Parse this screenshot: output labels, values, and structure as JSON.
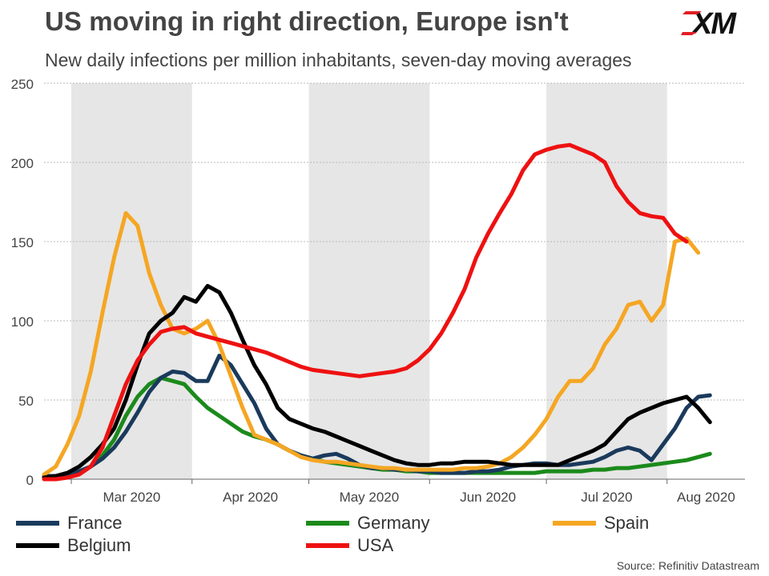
{
  "header": {
    "title": "US moving in right direction, Europe isn't",
    "subtitle": "New daily infections per million inhabitants, seven-day moving averages",
    "logo_text": "XM"
  },
  "source": "Source: Refinitiv Datastream",
  "colors": {
    "France": "#1a3a5c",
    "Germany": "#1b8a1b",
    "Spain": "#f5a623",
    "Belgium": "#000000",
    "USA": "#ee1111",
    "shade": "#e6e6e6",
    "grid": "#b8b8b8",
    "logo": "#e31e24"
  },
  "chart_data": {
    "type": "line",
    "title": "US moving in right direction, Europe isn't",
    "subtitle": "New daily infections per million inhabitants, seven-day moving averages",
    "xlabel": "",
    "ylabel": "",
    "ylim": [
      0,
      250
    ],
    "yticks": [
      0,
      50,
      100,
      150,
      200,
      250
    ],
    "x_start": "2020-02-23",
    "x_end": "2020-08-21",
    "x_step_days": 3,
    "xticks": [
      "Mar 2020",
      "Apr 2020",
      "May 2020",
      "Jun 2020",
      "Jul 2020",
      "Aug 2020"
    ],
    "shaded_months": [
      "Mar 2020",
      "May 2020",
      "Jul 2020"
    ],
    "grid": true,
    "legend_position": "bottom",
    "series": [
      {
        "name": "France",
        "values": [
          2,
          2,
          3,
          5,
          8,
          13,
          20,
          30,
          42,
          55,
          64,
          68,
          67,
          62,
          62,
          78,
          72,
          60,
          48,
          32,
          22,
          18,
          15,
          13,
          15,
          16,
          13,
          9,
          7,
          7,
          6,
          6,
          5,
          5,
          4,
          4,
          4,
          5,
          5,
          6,
          8,
          9,
          10,
          10,
          9,
          9,
          10,
          11,
          14,
          18,
          20,
          18,
          12,
          22,
          32,
          45,
          52,
          53
        ]
      },
      {
        "name": "Germany",
        "values": [
          1,
          1,
          2,
          4,
          8,
          15,
          25,
          40,
          52,
          60,
          64,
          62,
          60,
          52,
          45,
          40,
          35,
          30,
          27,
          25,
          22,
          18,
          15,
          13,
          11,
          10,
          9,
          8,
          7,
          6,
          6,
          5,
          5,
          4,
          4,
          4,
          4,
          4,
          4,
          4,
          4,
          4,
          4,
          5,
          5,
          5,
          5,
          6,
          6,
          7,
          7,
          8,
          9,
          10,
          11,
          12,
          14,
          16
        ]
      },
      {
        "name": "Spain",
        "values": [
          3,
          8,
          22,
          40,
          68,
          105,
          140,
          168,
          160,
          130,
          110,
          95,
          92,
          95,
          100,
          85,
          65,
          45,
          28,
          25,
          22,
          18,
          14,
          12,
          11,
          11,
          10,
          9,
          8,
          7,
          7,
          6,
          6,
          6,
          6,
          6,
          7,
          7,
          8,
          10,
          14,
          20,
          28,
          38,
          52,
          62,
          62,
          70,
          85,
          95,
          110,
          112,
          100,
          110,
          150,
          152,
          143
        ]
      },
      {
        "name": "Belgium",
        "values": [
          1,
          2,
          4,
          8,
          14,
          22,
          32,
          50,
          72,
          92,
          100,
          105,
          115,
          112,
          122,
          118,
          105,
          88,
          72,
          60,
          45,
          38,
          35,
          32,
          30,
          27,
          24,
          21,
          18,
          15,
          12,
          10,
          9,
          9,
          10,
          10,
          11,
          11,
          11,
          10,
          9,
          9,
          9,
          9,
          9,
          12,
          15,
          18,
          22,
          30,
          38,
          42,
          45,
          48,
          50,
          52,
          45,
          36
        ]
      },
      {
        "name": "USA",
        "values": [
          0,
          0,
          1,
          3,
          8,
          20,
          40,
          60,
          75,
          85,
          93,
          95,
          96,
          92,
          90,
          88,
          86,
          84,
          82,
          80,
          77,
          74,
          71,
          69,
          68,
          67,
          66,
          65,
          66,
          67,
          68,
          70,
          75,
          82,
          92,
          105,
          120,
          140,
          155,
          168,
          180,
          195,
          205,
          208,
          210,
          211,
          208,
          205,
          200,
          185,
          175,
          168,
          166,
          165,
          155,
          150
        ]
      }
    ]
  },
  "legend": {
    "items": [
      {
        "name": "France",
        "color": "#1a3a5c"
      },
      {
        "name": "Germany",
        "color": "#1b8a1b"
      },
      {
        "name": "Spain",
        "color": "#f5a623"
      },
      {
        "name": "Belgium",
        "color": "#000000"
      },
      {
        "name": "USA",
        "color": "#ee1111"
      }
    ]
  }
}
